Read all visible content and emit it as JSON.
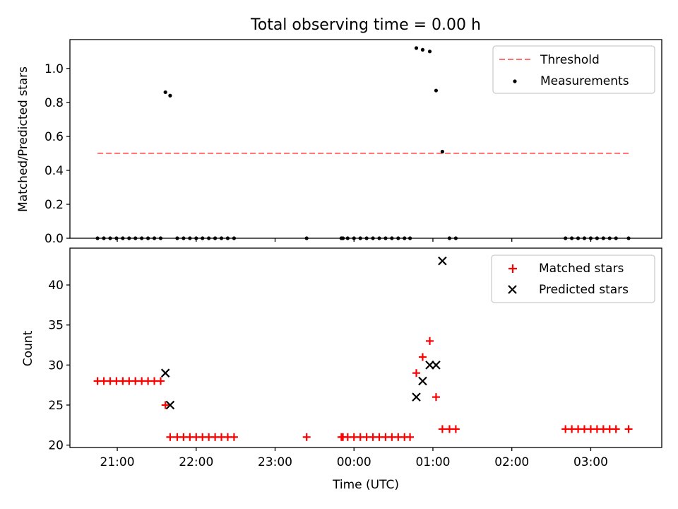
{
  "chart_data": [
    {
      "type": "scatter",
      "title": "Total observing time = 0.00 h",
      "xlabel": "",
      "ylabel": "Matched/Predicted stars",
      "xlim": [
        -3.6,
        3.9
      ],
      "ylim": [
        0.0,
        1.17
      ],
      "yticks": [
        0.0,
        0.2,
        0.4,
        0.6,
        0.8,
        1.0
      ],
      "ytick_labels": [
        "0.0",
        "0.2",
        "0.4",
        "0.6",
        "0.8",
        "1.0"
      ],
      "xticks": [
        -3,
        -2,
        -1,
        0,
        1,
        2,
        3
      ],
      "xtick_labels": [],
      "legend": "top-right",
      "series": [
        {
          "name": "Threshold",
          "kind": "dashed-line",
          "color": "#ff7070",
          "x": [
            -3.25,
            3.48
          ],
          "y": [
            0.5,
            0.5
          ]
        },
        {
          "name": "Measurements",
          "kind": "dots",
          "color": "#000000",
          "x": [
            -3.25,
            -3.17,
            -3.09,
            -3.01,
            -2.93,
            -2.85,
            -2.77,
            -2.69,
            -2.61,
            -2.53,
            -2.45,
            -2.39,
            -2.33,
            -2.24,
            -2.16,
            -2.08,
            -2.0,
            -1.92,
            -1.84,
            -1.76,
            -1.68,
            -1.6,
            -1.52,
            -0.6,
            -0.16,
            -0.14,
            -0.08,
            0.0,
            0.08,
            0.16,
            0.24,
            0.32,
            0.4,
            0.48,
            0.56,
            0.64,
            0.71,
            0.79,
            0.87,
            0.96,
            1.04,
            1.12,
            1.21,
            1.29,
            2.68,
            2.76,
            2.84,
            2.92,
            3.0,
            3.08,
            3.16,
            3.24,
            3.32,
            3.48
          ],
          "y": [
            0,
            0,
            0,
            0,
            0,
            0,
            0,
            0,
            0,
            0,
            0,
            0.86,
            0.84,
            0,
            0,
            0,
            0,
            0,
            0,
            0,
            0,
            0,
            0,
            0,
            0,
            0,
            0,
            0,
            0,
            0,
            0,
            0,
            0,
            0,
            0,
            0,
            0,
            1.12,
            1.11,
            1.1,
            0.87,
            0.51,
            0,
            0,
            0,
            0,
            0,
            0,
            0,
            0,
            0,
            0,
            0,
            0
          ]
        }
      ]
    },
    {
      "type": "scatter",
      "title": "",
      "xlabel": "Time (UTC)",
      "ylabel": "Count",
      "xlim": [
        -3.6,
        3.9
      ],
      "ylim": [
        19.7,
        44.6
      ],
      "yticks": [
        20,
        25,
        30,
        35,
        40
      ],
      "ytick_labels": [
        "20",
        "25",
        "30",
        "35",
        "40"
      ],
      "xticks": [
        -3,
        -2,
        -1,
        0,
        1,
        2,
        3
      ],
      "xtick_labels": [
        "21:00",
        "22:00",
        "23:00",
        "00:00",
        "01:00",
        "02:00",
        "03:00"
      ],
      "legend": "top-right",
      "series": [
        {
          "name": "Matched stars",
          "kind": "plus",
          "color": "#ff0000",
          "x": [
            -3.25,
            -3.17,
            -3.09,
            -3.01,
            -2.93,
            -2.85,
            -2.77,
            -2.69,
            -2.61,
            -2.53,
            -2.45,
            -2.39,
            -2.33,
            -2.24,
            -2.16,
            -2.08,
            -2.0,
            -1.92,
            -1.84,
            -1.76,
            -1.68,
            -1.6,
            -1.52,
            -0.6,
            -0.16,
            -0.14,
            -0.08,
            0.0,
            0.08,
            0.16,
            0.24,
            0.32,
            0.4,
            0.48,
            0.56,
            0.64,
            0.71,
            0.79,
            0.87,
            0.96,
            1.04,
            1.12,
            1.21,
            1.29,
            2.68,
            2.76,
            2.84,
            2.92,
            3.0,
            3.08,
            3.16,
            3.24,
            3.32,
            3.48
          ],
          "y": [
            28,
            28,
            28,
            28,
            28,
            28,
            28,
            28,
            28,
            28,
            28,
            25,
            21,
            21,
            21,
            21,
            21,
            21,
            21,
            21,
            21,
            21,
            21,
            21,
            21,
            21,
            21,
            21,
            21,
            21,
            21,
            21,
            21,
            21,
            21,
            21,
            21,
            29,
            31,
            33,
            26,
            22,
            22,
            22,
            22,
            22,
            22,
            22,
            22,
            22,
            22,
            22,
            22,
            22
          ]
        },
        {
          "name": "Predicted stars",
          "kind": "x",
          "color": "#000000",
          "x": [
            -2.39,
            -2.33,
            0.79,
            0.87,
            0.96,
            1.04,
            1.12
          ],
          "y": [
            29,
            25,
            26,
            28,
            30,
            30,
            43
          ]
        }
      ]
    }
  ]
}
